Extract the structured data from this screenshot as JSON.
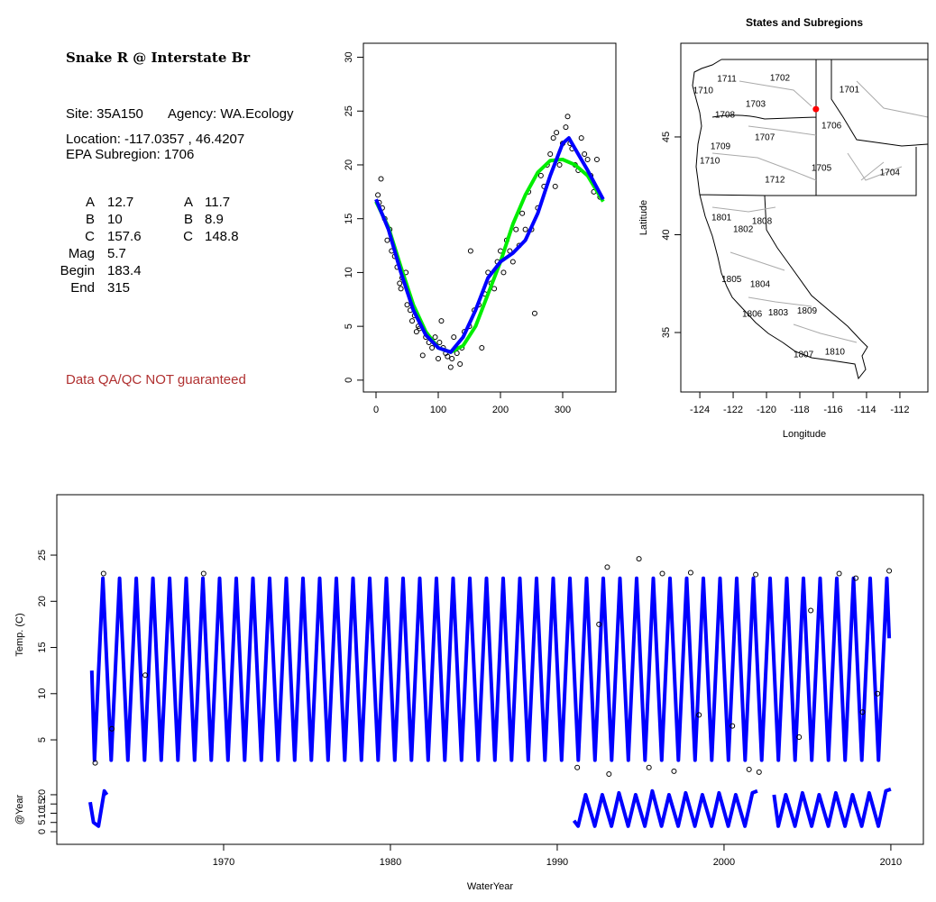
{
  "info": {
    "title": "Snake R @ Interstate Br",
    "site": "Site: 35A150",
    "agency": "Agency: WA.Ecology",
    "location": "Location: -117.0357 , 46.4207",
    "subregion": "EPA Subregion: 1706",
    "params": [
      [
        "A",
        12.7,
        "A",
        11.7
      ],
      [
        "B",
        10,
        "B",
        8.9
      ],
      [
        "C",
        157.6,
        "C",
        148.8
      ],
      [
        "Mag",
        5.7
      ],
      [
        "Begin",
        183.4
      ],
      [
        "End",
        315
      ]
    ],
    "note": "Data QA/QC NOT guaranteed"
  },
  "chart_data": [
    {
      "type": "scatter",
      "xlim": [
        -20.3,
        385.5
      ],
      "ylim": [
        -1.1,
        31.3
      ],
      "xticks": [
        0,
        100,
        200,
        300
      ],
      "yticks": [
        0,
        5,
        10,
        15,
        20,
        25,
        30
      ],
      "points": {
        "x": [
          3,
          5,
          8,
          10,
          14,
          18,
          22,
          25,
          30,
          34,
          38,
          40,
          42,
          48,
          50,
          55,
          58,
          62,
          65,
          68,
          70,
          75,
          80,
          85,
          90,
          95,
          100,
          102,
          105,
          108,
          112,
          115,
          120,
          122,
          125,
          128,
          130,
          135,
          138,
          142,
          150,
          152,
          158,
          165,
          170,
          175,
          180,
          185,
          190,
          195,
          200,
          205,
          210,
          215,
          220,
          225,
          230,
          235,
          240,
          245,
          250,
          255,
          260,
          265,
          270,
          275,
          280,
          285,
          288,
          290,
          295,
          300,
          305,
          308,
          312,
          315,
          320,
          325,
          330,
          335,
          340,
          345,
          350,
          355,
          360
        ],
        "values": [
          17.2,
          16.5,
          18.7,
          16,
          15,
          13,
          14,
          12,
          11.5,
          10.5,
          9,
          8.5,
          9.5,
          10,
          7,
          6.5,
          5.5,
          6,
          4.5,
          5,
          4.8,
          2.3,
          4,
          3.5,
          3,
          4,
          2,
          3.5,
          5.5,
          3,
          2.5,
          2.2,
          1.2,
          2,
          4,
          3,
          2.5,
          1.5,
          3,
          4.5,
          5,
          12,
          6.5,
          7,
          3,
          8,
          10,
          9,
          8.5,
          11,
          12,
          10,
          13,
          12,
          11,
          14,
          12.5,
          15.5,
          14,
          17.5,
          14,
          6.2,
          16,
          19,
          18,
          20,
          21,
          22.5,
          18,
          23,
          20,
          22,
          23.5,
          24.5,
          22,
          21.5,
          20,
          19.5,
          22.5,
          21,
          20.5,
          19,
          17.5,
          20.5,
          17
        ]
      },
      "series": [
        {
          "color": "#00ee00",
          "x": [
            0,
            20,
            40,
            60,
            80,
            100,
            120,
            140,
            160,
            180,
            200,
            220,
            240,
            260,
            280,
            300,
            320,
            340,
            365
          ],
          "values": [
            16.6,
            14.2,
            10.5,
            7,
            4.5,
            3,
            2.6,
            3.2,
            5,
            8,
            11,
            14.5,
            17.2,
            19.3,
            20.4,
            20.5,
            20,
            19,
            16.6
          ]
        },
        {
          "color": "#0000ff",
          "x": [
            0,
            20,
            40,
            60,
            80,
            100,
            120,
            140,
            160,
            180,
            200,
            220,
            240,
            260,
            280,
            300,
            310,
            320,
            340,
            365
          ],
          "values": [
            16.8,
            14,
            10,
            6.5,
            4.2,
            3,
            2.6,
            4,
            6.5,
            9.5,
            11,
            11.8,
            13,
            15.5,
            19,
            22,
            22.5,
            21.5,
            19.5,
            16.8
          ]
        }
      ]
    },
    {
      "type": "map",
      "title": "States and Subregions",
      "xlabel": "Longitude",
      "ylabel": "Latitude",
      "xlim": [
        -125.14,
        -110.32
      ],
      "ylim": [
        31.96,
        49.79
      ],
      "xticks": [
        -124,
        -122,
        -120,
        -118,
        -116,
        -114,
        -112
      ],
      "yticks": [
        35,
        40,
        45
      ],
      "labels": [
        {
          "text": "1702",
          "x": -119.19,
          "y": 48.0
        },
        {
          "text": "1701",
          "x": -115.03,
          "y": 47.4
        },
        {
          "text": "1711",
          "x": -122.38,
          "y": 47.95
        },
        {
          "text": "1710",
          "x": -123.8,
          "y": 47.35
        },
        {
          "text": "1703",
          "x": -120.65,
          "y": 46.66
        },
        {
          "text": "1708",
          "x": -122.49,
          "y": 46.1
        },
        {
          "text": "1706",
          "x": -116.1,
          "y": 45.55
        },
        {
          "text": "1707",
          "x": -120.1,
          "y": 44.95
        },
        {
          "text": "1709",
          "x": -122.76,
          "y": 44.5
        },
        {
          "text": "1710",
          "x": -123.4,
          "y": 43.76
        },
        {
          "text": "1705",
          "x": -116.7,
          "y": 43.39
        },
        {
          "text": "1704",
          "x": -112.6,
          "y": 43.16
        },
        {
          "text": "1712",
          "x": -119.5,
          "y": 42.8
        },
        {
          "text": "1801",
          "x": -122.7,
          "y": 40.85
        },
        {
          "text": "1808",
          "x": -120.27,
          "y": 40.67
        },
        {
          "text": "1802",
          "x": -121.4,
          "y": 40.25
        },
        {
          "text": "1805",
          "x": -122.1,
          "y": 37.7
        },
        {
          "text": "1804",
          "x": -120.38,
          "y": 37.44
        },
        {
          "text": "1806",
          "x": -120.86,
          "y": 35.92
        },
        {
          "text": "1803",
          "x": -119.3,
          "y": 36.0
        },
        {
          "text": "1809",
          "x": -117.57,
          "y": 36.1
        },
        {
          "text": "1810",
          "x": -115.9,
          "y": 33.99
        },
        {
          "text": "1807",
          "x": -117.78,
          "y": 33.85
        }
      ],
      "site": {
        "x": -117.0357,
        "y": 46.4207,
        "color": "#ff0000"
      }
    },
    {
      "type": "line",
      "ylabel": "Temp. (C)",
      "xlim": [
        1960,
        2011.95
      ],
      "ylim": [
        1.2,
        31.54
      ],
      "yticks": [
        5,
        10,
        15,
        20,
        25
      ],
      "series": [
        {
          "color": "#0000ff",
          "x": [
            1962.1,
            1962.26,
            1962.76,
            1963.26,
            1963.76,
            1964.26,
            1964.76,
            1965.26,
            1965.76,
            1966.26,
            1966.76,
            1967.26,
            1967.76,
            1968.26,
            1968.76,
            1969.26,
            1969.76,
            1970.26,
            1970.76,
            1971.26,
            1971.76,
            1972.26,
            1972.76,
            1973.26,
            1973.76,
            1974.26,
            1974.76,
            1975.26,
            1975.76,
            1976.26,
            1976.76,
            1977.26,
            1977.76,
            1978.26,
            1978.76,
            1979.26,
            1979.76,
            1980.26,
            1980.76,
            1981.26,
            1981.76,
            1982.26,
            1982.76,
            1983.26,
            1983.76,
            1984.26,
            1984.76,
            1985.26,
            1985.76,
            1986.26,
            1986.76,
            1987.26,
            1987.76,
            1988.26,
            1988.76,
            1989.26,
            1989.76,
            1990.26,
            1990.76,
            1991.26,
            1991.76,
            1992.26,
            1992.76,
            1993.26,
            1993.76,
            1994.26,
            1994.76,
            1995.26,
            1995.76,
            1996.26,
            1996.76,
            1997.26,
            1997.76,
            1998.26,
            1998.76,
            1999.26,
            1999.76,
            2000.26,
            2000.76,
            2001.26,
            2001.76,
            2002.26,
            2002.76,
            2003.26,
            2003.76,
            2004.26,
            2004.76,
            2005.26,
            2005.76,
            2006.26,
            2006.76,
            2007.26,
            2007.76,
            2008.26,
            2008.76,
            2009.26,
            2009.76,
            2009.9
          ],
          "values": [
            12.5,
            2.8,
            22.5,
            2.8,
            22.5,
            2.8,
            22.5,
            2.8,
            22.5,
            2.8,
            22.5,
            2.8,
            22.5,
            2.8,
            22.5,
            2.8,
            22.5,
            2.8,
            22.5,
            2.8,
            22.5,
            2.8,
            22.5,
            2.8,
            22.5,
            2.8,
            22.5,
            2.8,
            22.5,
            2.8,
            22.5,
            2.8,
            22.5,
            2.8,
            22.5,
            2.8,
            22.5,
            2.8,
            22.5,
            2.8,
            22.5,
            2.8,
            22.5,
            2.8,
            22.5,
            2.8,
            22.5,
            2.8,
            22.5,
            2.8,
            22.5,
            2.8,
            22.5,
            2.8,
            22.5,
            2.8,
            22.5,
            2.8,
            22.5,
            2.8,
            22.5,
            2.8,
            22.5,
            2.8,
            22.5,
            2.8,
            22.5,
            2.8,
            22.5,
            2.8,
            22.5,
            2.8,
            22.5,
            2.8,
            22.5,
            2.8,
            22.5,
            2.8,
            22.5,
            2.8,
            22.5,
            2.8,
            22.5,
            2.8,
            22.5,
            2.8,
            22.5,
            2.8,
            22.5,
            2.8,
            22.5,
            2.8,
            22.5,
            2.8,
            22.5,
            2.8,
            22.5,
            16
          ]
        }
      ],
      "points": {
        "x": [
          1962.8,
          1962.3,
          1963.3,
          1965.3,
          1968.8,
          1993.0,
          1994.9,
          1991.2,
          1993.1,
          1996.3,
          1998,
          2001.9,
          2002.1,
          2007.9,
          2006.9,
          2009.9,
          1995.5,
          1997.0,
          1992.5,
          1998.5,
          2000.5,
          2004.5,
          2008.3,
          2001.5,
          2005.2,
          2009.2
        ],
        "values": [
          23,
          2.5,
          6.2,
          12,
          23,
          23.7,
          24.6,
          2,
          1.3,
          23,
          23.1,
          22.9,
          1.5,
          22.5,
          23,
          23.3,
          2,
          1.6,
          17.5,
          7.7,
          6.5,
          5.3,
          8,
          1.8,
          19,
          10
        ]
      }
    },
    {
      "type": "line",
      "ylabel": "@Year",
      "xlabel": "WaterYear",
      "xlim": [
        1960,
        2011.95
      ],
      "ylim": [
        -6.83,
        30.7
      ],
      "yticks": [
        0,
        5,
        10,
        15,
        20
      ],
      "xticks": [
        1970,
        1980,
        1990,
        2000,
        2010
      ],
      "series": [
        {
          "color": "#0000ff",
          "x": [
            1962.0,
            1962.2,
            1962.5,
            1962.85,
            1963.0,
            1977,
            1991.0,
            1991.25,
            1991.7,
            1992.25,
            1992.7,
            1993.25,
            1993.7,
            1994.25,
            1994.7,
            1995.25,
            1995.7,
            1996.25,
            1996.7,
            1997.25,
            1997.7,
            1998.25,
            1998.7,
            1999.25,
            1999.7,
            2000.25,
            2000.7,
            2001.25,
            2001.7,
            2002.0,
            2002.5,
            2003.0,
            2003.25,
            2003.7,
            2004.25,
            2004.7,
            2005.25,
            2005.7,
            2006.25,
            2006.7,
            2007.25,
            2007.7,
            2008.25,
            2008.7,
            2009.25,
            2009.7,
            2010.0
          ],
          "values": [
            16,
            5,
            3,
            22,
            20,
            null,
            6,
            3,
            20,
            3,
            20,
            3,
            21,
            3,
            20,
            3,
            22,
            3,
            20,
            3,
            21,
            3,
            20,
            3,
            21,
            3,
            20,
            3,
            21,
            22,
            null,
            20,
            3,
            20,
            3,
            21,
            3,
            20,
            3,
            21,
            3,
            20,
            3,
            21,
            3,
            22,
            23
          ]
        }
      ]
    }
  ]
}
